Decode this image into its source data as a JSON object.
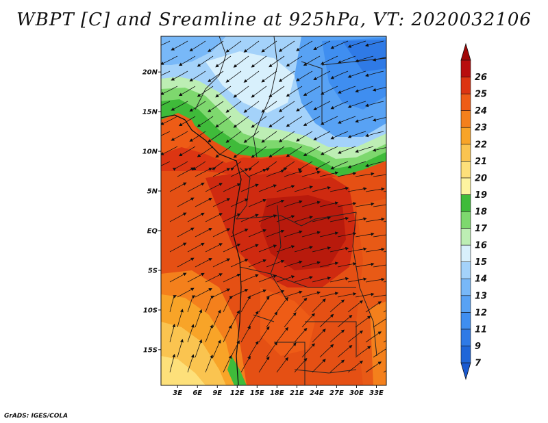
{
  "title": "WBPT [C] and Sreamline at 925hPa, VT: 2020032106",
  "credit": "GrADS: IGES/COLA",
  "map": {
    "lat_ticks": [
      {
        "label": "20N",
        "lat": 20
      },
      {
        "label": "15N",
        "lat": 15
      },
      {
        "label": "10N",
        "lat": 10
      },
      {
        "label": "5N",
        "lat": 5
      },
      {
        "label": "EQ",
        "lat": 0
      },
      {
        "label": "5S",
        "lat": -5
      },
      {
        "label": "10S",
        "lat": -10
      },
      {
        "label": "15S",
        "lat": -15
      }
    ],
    "lon_ticks": [
      {
        "label": "3E",
        "lon": 3
      },
      {
        "label": "6E",
        "lon": 6
      },
      {
        "label": "9E",
        "lon": 9
      },
      {
        "label": "12E",
        "lon": 12
      },
      {
        "label": "15E",
        "lon": 15
      },
      {
        "label": "18E",
        "lon": 18
      },
      {
        "label": "21E",
        "lon": 21
      },
      {
        "label": "24E",
        "lon": 24
      },
      {
        "label": "27E",
        "lon": 27
      },
      {
        "label": "30E",
        "lon": 30
      },
      {
        "label": "33E",
        "lon": 33
      }
    ],
    "lon_range": [
      0.5,
      34.5
    ],
    "lat_range": [
      -19.5,
      24.5
    ]
  },
  "colorbar": {
    "levels": [
      {
        "label": "7",
        "color": "#1f66d8"
      },
      {
        "label": "9",
        "color": "#2f7ae6"
      },
      {
        "label": "11",
        "color": "#3f8ef0"
      },
      {
        "label": "12",
        "color": "#58a2f4"
      },
      {
        "label": "13",
        "color": "#78b8f8"
      },
      {
        "label": "14",
        "color": "#a4d2fa"
      },
      {
        "label": "15",
        "color": "#d8f0fc"
      },
      {
        "label": "16",
        "color": "#bdeeb4"
      },
      {
        "label": "17",
        "color": "#7ed86e"
      },
      {
        "label": "18",
        "color": "#3fbb3a"
      },
      {
        "label": "19",
        "color": "#fdf4a0"
      },
      {
        "label": "20",
        "color": "#fde07a"
      },
      {
        "label": "21",
        "color": "#fac450"
      },
      {
        "label": "22",
        "color": "#f8a428"
      },
      {
        "label": "23",
        "color": "#f4801c"
      },
      {
        "label": "24",
        "color": "#ee5c16"
      },
      {
        "label": "25",
        "color": "#dc3512"
      },
      {
        "label": "26",
        "color": "#b80e0e"
      }
    ],
    "bottom_color": "#1a5ad0",
    "top_color": "#a00808"
  }
}
